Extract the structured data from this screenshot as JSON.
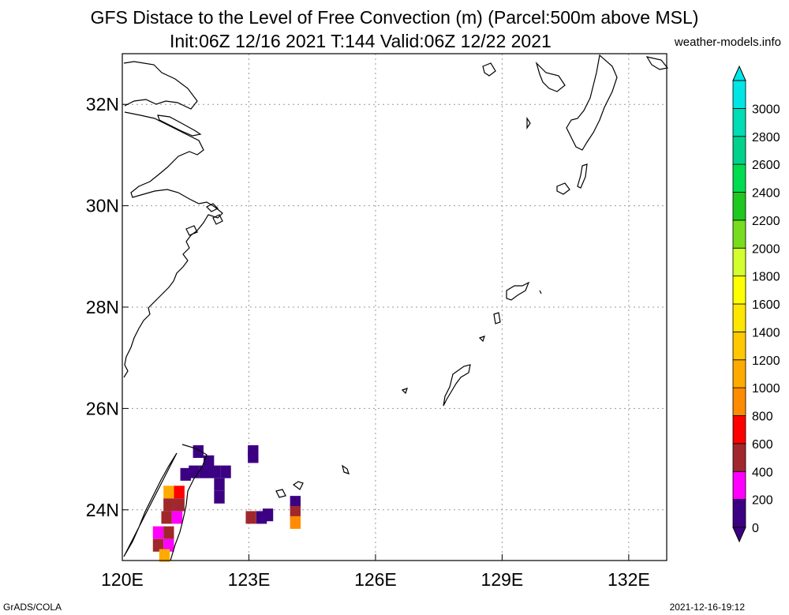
{
  "title": {
    "line1": "GFS Distace to the Level of Free Convection (m) (Parcel:500m above MSL)",
    "line2": "Init:06Z 12/16 2021 T:144 Valid:06Z 12/22 2021",
    "source": "weather-models.info"
  },
  "footer": {
    "left": "GrADS/COLA",
    "right": "2021-12-16-19:12"
  },
  "chart_data": {
    "type": "heatmap",
    "title": "GFS Distace to the Level of Free Convection (m) (Parcel:500m above MSL)",
    "xlabel": "",
    "ylabel": "",
    "xlim": [
      120,
      132.9
    ],
    "ylim": [
      23,
      33
    ],
    "grid": true,
    "x_ticks": [
      {
        "value": 120,
        "label": "120E"
      },
      {
        "value": 123,
        "label": "123E"
      },
      {
        "value": 126,
        "label": "126E"
      },
      {
        "value": 129,
        "label": "129E"
      },
      {
        "value": 132,
        "label": "132E"
      }
    ],
    "y_ticks": [
      {
        "value": 24,
        "label": "24N"
      },
      {
        "value": 26,
        "label": "26N"
      },
      {
        "value": 28,
        "label": "28N"
      },
      {
        "value": 30,
        "label": "30N"
      },
      {
        "value": 32,
        "label": "32N"
      }
    ],
    "colorbar": {
      "labels": [
        "0",
        "200",
        "400",
        "600",
        "800",
        "1000",
        "1200",
        "1400",
        "1600",
        "1800",
        "2000",
        "2200",
        "2400",
        "2600",
        "2800",
        "3000"
      ],
      "colors": [
        "#3c0082",
        "#ff00ff",
        "#a0282d",
        "#ff0000",
        "#ff8c00",
        "#ffaa00",
        "#ffc800",
        "#ffe600",
        "#ffff00",
        "#d2ff2d",
        "#78dc1e",
        "#1ec81e",
        "#00dc50",
        "#00d28c",
        "#00dcb4",
        "#00e6e6"
      ]
    },
    "cells": [
      {
        "lon": 121.8,
        "lat": 25.15,
        "value": 150
      },
      {
        "lon": 122.05,
        "lat": 24.95,
        "value": 50
      },
      {
        "lon": 121.95,
        "lat": 24.75,
        "value": 50
      },
      {
        "lon": 122.2,
        "lat": 24.75,
        "value": 50
      },
      {
        "lon": 122.45,
        "lat": 24.75,
        "value": 50
      },
      {
        "lon": 121.7,
        "lat": 24.75,
        "value": 150
      },
      {
        "lon": 121.5,
        "lat": 24.7,
        "value": 150
      },
      {
        "lon": 122.3,
        "lat": 24.5,
        "value": 50
      },
      {
        "lon": 122.3,
        "lat": 24.25,
        "value": 50
      },
      {
        "lon": 123.1,
        "lat": 25.15,
        "value": 150
      },
      {
        "lon": 123.1,
        "lat": 25.05,
        "value": 50
      },
      {
        "lon": 121.1,
        "lat": 24.35,
        "value": 1050
      },
      {
        "lon": 121.35,
        "lat": 24.35,
        "value": 650
      },
      {
        "lon": 121.1,
        "lat": 24.1,
        "value": 550
      },
      {
        "lon": 121.35,
        "lat": 24.1,
        "value": 450
      },
      {
        "lon": 121.05,
        "lat": 23.85,
        "value": 550
      },
      {
        "lon": 121.3,
        "lat": 23.85,
        "value": 350
      },
      {
        "lon": 120.85,
        "lat": 23.55,
        "value": 350
      },
      {
        "lon": 121.1,
        "lat": 23.55,
        "value": 450
      },
      {
        "lon": 120.85,
        "lat": 23.3,
        "value": 450
      },
      {
        "lon": 121.1,
        "lat": 23.3,
        "value": 350
      },
      {
        "lon": 121.0,
        "lat": 23.1,
        "value": 1050
      },
      {
        "lon": 123.05,
        "lat": 23.85,
        "value": 500
      },
      {
        "lon": 123.3,
        "lat": 23.85,
        "value": 50
      },
      {
        "lon": 123.45,
        "lat": 23.9,
        "value": 150
      },
      {
        "lon": 124.1,
        "lat": 24.15,
        "value": 150
      },
      {
        "lon": 124.1,
        "lat": 23.95,
        "value": 500
      },
      {
        "lon": 124.1,
        "lat": 23.75,
        "value": 950
      }
    ]
  }
}
